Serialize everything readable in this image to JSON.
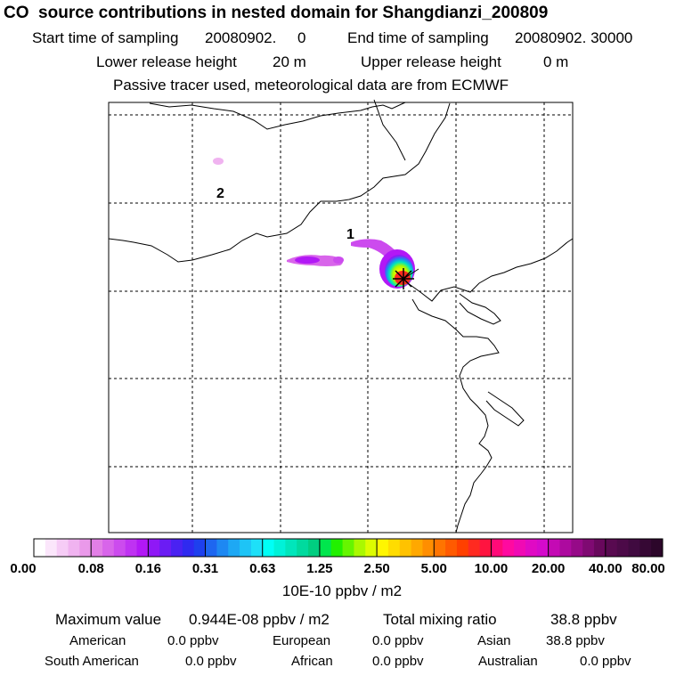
{
  "title": "CO  source contributions in nested domain for Shangdianzi_200809",
  "sampling": {
    "start_label": "Start time of sampling",
    "start_value": "20080902.     0",
    "end_label": "End time of sampling",
    "end_value": "20080902. 30000"
  },
  "release": {
    "lower_label": "Lower release height",
    "lower_value": "20 m",
    "upper_label": "Upper release height",
    "upper_value": "0 m"
  },
  "note": "Passive tracer used, meteorological data are from ECMWF",
  "chart_data": {
    "type": "heatmap",
    "map_labels": [
      "1",
      "2"
    ],
    "grid": true,
    "colorbar": {
      "tick_labels": [
        "0.00",
        "0.08",
        "0.16",
        "0.31",
        "0.63",
        "1.25",
        "2.50",
        "5.00",
        "10.00",
        "20.00",
        "40.00",
        "80.00"
      ],
      "units": "10E-10 ppbv / m2",
      "colors": [
        [
          "#ffffff",
          "#fbe6fb",
          "#f6ccf6",
          "#f0b3f0",
          "#ea99ea"
        ],
        [
          "#e27fe6",
          "#d865ea",
          "#cc4bee",
          "#bf32f2",
          "#b218f6"
        ],
        [
          "#8f18f6",
          "#6b1cf4",
          "#4a22f2",
          "#2f2af0",
          "#1e40ee"
        ],
        [
          "#1e66f0",
          "#1e88f2",
          "#1ea8f4",
          "#1ec4f6",
          "#1ee0f8"
        ],
        [
          "#00fff6",
          "#00f2d8",
          "#00e6bb",
          "#00da9e",
          "#00ce80"
        ],
        [
          "#00e64d",
          "#22f000",
          "#66f500",
          "#aaf800",
          "#ddfc00"
        ],
        [
          "#fff600",
          "#ffdc00",
          "#ffc200",
          "#ffa800",
          "#ff8e00"
        ],
        [
          "#ff7400",
          "#ff5a00",
          "#ff4000",
          "#ff2a20",
          "#ff1440"
        ],
        [
          "#ff0a78",
          "#ff0aa0",
          "#f00ab4",
          "#e00ac4",
          "#d40acc"
        ],
        [
          "#c40ab4",
          "#ad0a9f",
          "#960a88",
          "#7f0a72",
          "#68085c"
        ],
        [
          "#580a50",
          "#4c0a48",
          "#400a40",
          "#360834",
          "#2c062a"
        ]
      ]
    }
  },
  "summary": {
    "max_label": "Maximum value",
    "max_value": "0.944E-08 ppbv / m2",
    "total_label": "Total mixing ratio",
    "total_value": "38.8 ppbv",
    "american_label": "American",
    "american_value": "0.0 ppbv",
    "european_label": "European",
    "european_value": "0.0 ppbv",
    "asian_label": "Asian",
    "asian_value": "38.8 ppbv",
    "southamerican_label": "South American",
    "southamerican_value": "0.0 ppbv",
    "african_label": "African",
    "african_value": "0.0 ppbv",
    "australian_label": "Australian",
    "australian_value": "0.0 ppbv"
  }
}
